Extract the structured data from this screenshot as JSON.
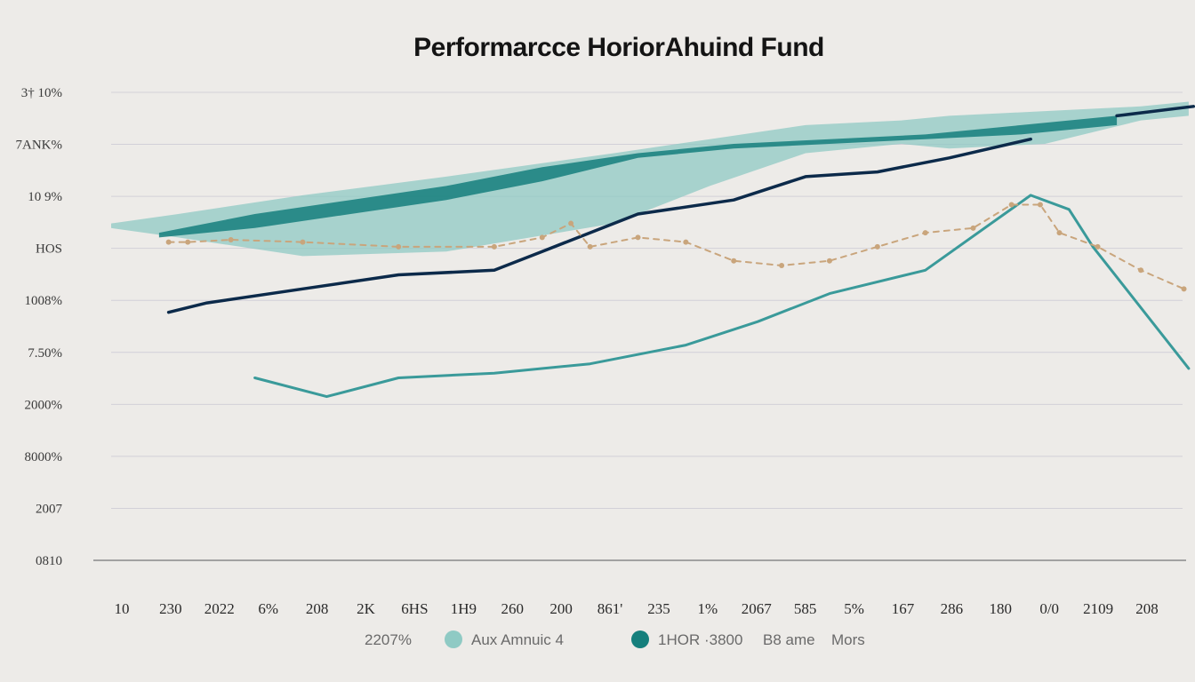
{
  "chart_data": {
    "type": "line",
    "title": "Performarcce HoriorAhuind Fund",
    "xlabel": "",
    "ylabel": "",
    "y_tick_labels": [
      "3† 10%",
      "7ANK%",
      "10 9%",
      "HOS",
      "1008%",
      "7.50%",
      "2000%",
      "8000%",
      "2007",
      "0810"
    ],
    "x_tick_labels": [
      "10",
      "230",
      "2022",
      "6%",
      "208",
      "2K",
      "6HS",
      "1H9",
      "260",
      "200",
      "861'",
      "235",
      "1%",
      "2067",
      "585",
      "5%",
      "167",
      "286",
      "180",
      "0/0",
      "2109",
      "208"
    ],
    "ylim": [
      0,
      100
    ],
    "grid": true,
    "legend_position": "bottom-center",
    "legend": [
      {
        "label": "2207%",
        "color": ""
      },
      {
        "label": "Aux  Amnuic 4",
        "color": "#8fcac4"
      },
      {
        "label": "1HOR ·3800",
        "color": "#157f7c"
      },
      {
        "label": "B8 ame",
        "color": ""
      },
      {
        "label": "Mors",
        "color": ""
      }
    ],
    "colors": {
      "band_light": "#8fcac4",
      "band_dark": "#157f7c",
      "navy": "#0c2a4a",
      "teal_line": "#3a9a9a",
      "tan": "#c9a57c",
      "grid": "#d2d0d8",
      "axis": "#9a9a9a"
    },
    "series": [
      {
        "kind": "band",
        "color": "#8fcac4",
        "x": [
          0,
          1.4,
          4,
          7,
          10.5,
          12.5,
          14.5,
          16.5,
          17.5,
          19.5,
          21.5,
          22.5
        ],
        "upper": [
          72,
          74,
          78,
          82,
          87,
          90,
          93,
          94,
          95,
          96,
          97,
          98
        ],
        "lower": [
          71,
          69,
          65,
          66,
          72,
          80,
          87,
          89,
          88,
          89,
          94,
          95
        ]
      },
      {
        "kind": "band",
        "color": "#157f7c",
        "x": [
          1,
          3,
          5,
          7,
          9,
          11,
          13,
          15,
          17,
          19,
          21
        ],
        "upper": [
          70,
          74,
          77,
          80,
          84,
          87,
          89,
          90,
          91,
          93,
          95
        ],
        "lower": [
          69,
          71,
          74,
          77,
          81,
          86,
          88,
          89,
          90,
          91,
          93
        ]
      },
      {
        "kind": "line",
        "color": "#0c2a4a",
        "width": 3.5,
        "x": [
          1.2,
          2,
          4,
          6,
          8,
          9,
          11,
          13,
          14.5,
          16,
          17.5,
          19.2
        ],
        "y": [
          53,
          55,
          58,
          61,
          62,
          66,
          74,
          77,
          82,
          83,
          86,
          90
        ]
      },
      {
        "kind": "line",
        "color": "#0c2a4a",
        "width": 3.5,
        "x": [
          21,
          22.6
        ],
        "y": [
          95,
          97
        ]
      },
      {
        "kind": "line",
        "color": "#3a9a9a",
        "width": 3,
        "x": [
          3,
          4.5,
          6,
          8,
          10,
          12,
          13.5,
          15,
          17,
          19.2,
          20,
          20.5,
          22.5
        ],
        "y": [
          39,
          35,
          39,
          40,
          42,
          46,
          51,
          57,
          62,
          78,
          75,
          67,
          41
        ]
      },
      {
        "kind": "line",
        "color": "#c9a57c",
        "width": 2,
        "dashed": true,
        "x": [
          1.2,
          1.6,
          2.5,
          4,
          6,
          8,
          9,
          9.6,
          10,
          11,
          12,
          13,
          14,
          15,
          16,
          17,
          18,
          18.8,
          19.4,
          19.8,
          20.6,
          21.5,
          22.4
        ],
        "y": [
          68,
          68,
          68.5,
          68,
          67,
          67,
          69,
          72,
          67,
          69,
          68,
          64,
          63,
          64,
          67,
          70,
          71,
          76,
          76,
          70,
          67,
          62,
          58
        ]
      }
    ]
  }
}
